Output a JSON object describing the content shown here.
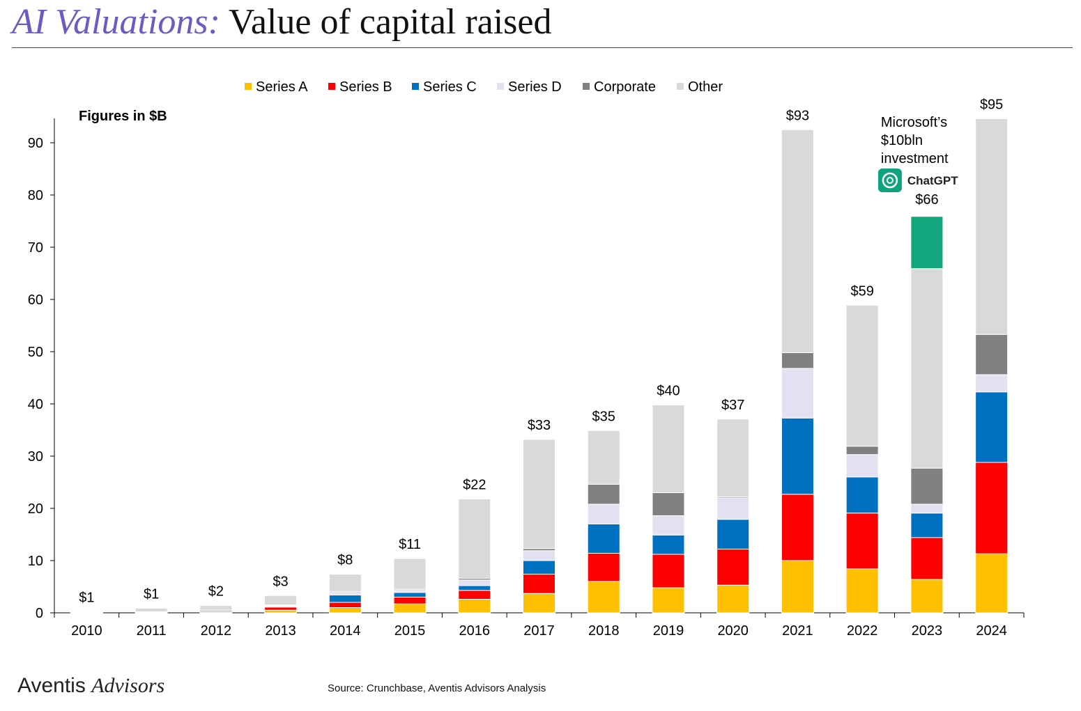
{
  "header": {
    "title_italic": "AI Valuations:",
    "title_main": "Value of capital raised"
  },
  "footer": {
    "brand_part1": "Aventis",
    "brand_part2": "Advisors",
    "source": "Source: Crunchbase, Aventis Advisors Analysis"
  },
  "colors": {
    "Series A": "#ffc000",
    "Series B": "#ff0000",
    "Series C": "#0070c0",
    "Series D": "#e2e1f1",
    "Corporate": "#808080",
    "Other": "#d9d9d9",
    "Microsoft": "#13a57c",
    "chatgpt_logo": "#10a37f"
  },
  "chart_data": {
    "type": "bar",
    "stacked": true,
    "units_note": "Figures in $B",
    "categories": [
      "2010",
      "2011",
      "2012",
      "2013",
      "2014",
      "2015",
      "2016",
      "2017",
      "2018",
      "2019",
      "2020",
      "2021",
      "2022",
      "2023",
      "2024"
    ],
    "ylim": [
      0,
      95
    ],
    "yticks": [
      0,
      10,
      20,
      30,
      40,
      50,
      60,
      70,
      80,
      90
    ],
    "legend_position": "top",
    "series": [
      {
        "name": "Series A",
        "values": [
          0.05,
          0.1,
          0.2,
          0.5,
          1.0,
          1.7,
          2.6,
          3.7,
          6.0,
          4.8,
          5.3,
          10.0,
          8.4,
          6.4,
          11.3
        ]
      },
      {
        "name": "Series B",
        "values": [
          0.05,
          0.1,
          0.2,
          0.6,
          1.0,
          1.3,
          1.7,
          3.7,
          5.4,
          6.4,
          6.9,
          12.7,
          10.7,
          8.0,
          17.5
        ]
      },
      {
        "name": "Series C",
        "values": [
          0.0,
          0.0,
          0.0,
          0.1,
          1.4,
          0.9,
          0.9,
          2.6,
          5.6,
          3.7,
          5.7,
          14.6,
          6.9,
          4.7,
          13.5
        ]
      },
      {
        "name": "Series D",
        "values": [
          0.0,
          0.0,
          0.1,
          0.2,
          0.5,
          0.4,
          1.1,
          1.9,
          3.8,
          3.7,
          4.1,
          9.5,
          4.3,
          1.7,
          3.3
        ]
      },
      {
        "name": "Corporate",
        "values": [
          0.0,
          0.0,
          0.0,
          0.1,
          0.2,
          0.2,
          0.3,
          0.4,
          3.8,
          4.4,
          0.2,
          3.0,
          1.6,
          6.9,
          7.7
        ]
      },
      {
        "name": "Other",
        "values": [
          0.1,
          0.7,
          0.9,
          1.8,
          3.3,
          5.9,
          15.2,
          20.9,
          10.3,
          16.8,
          14.9,
          42.7,
          27.0,
          38.2,
          41.3
        ]
      }
    ],
    "extra_segments": [
      {
        "category": "2023",
        "name": "Microsoft",
        "value": 10
      }
    ],
    "totals_labels": [
      "$1",
      "$1",
      "$2",
      "$3",
      "$8",
      "$11",
      "$22",
      "$33",
      "$35",
      "$40",
      "$37",
      "$93",
      "$59",
      "$66",
      "$95"
    ],
    "annotations": [
      {
        "category": "2023",
        "lines": [
          "Microsoft’s",
          "$10bln",
          "investment"
        ],
        "logo_text": "ChatGPT"
      }
    ]
  }
}
